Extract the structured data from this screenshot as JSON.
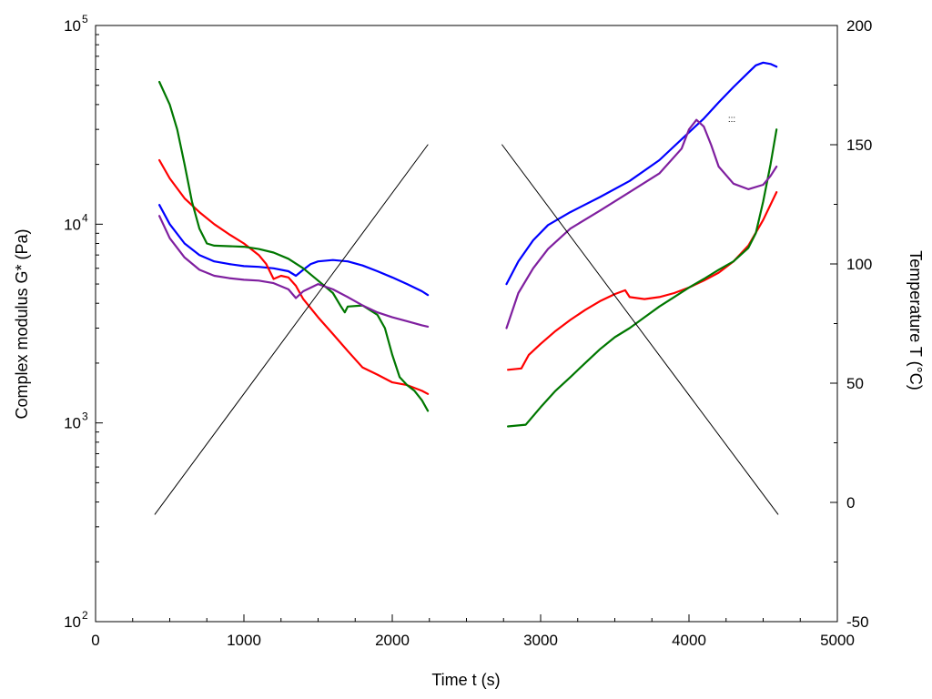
{
  "chart_data": {
    "type": "line",
    "title": "",
    "xlabel": "Time  t  (s)",
    "ylabel_left": "Complex modulus  G*  (Pa)",
    "ylabel_right": "Temperature  T  (°C)",
    "xlim": [
      0,
      5000
    ],
    "ylim_left": [
      100,
      100000
    ],
    "yscale_left": "log",
    "ylim_right": [
      -50,
      200
    ],
    "grid": false,
    "legend": "none",
    "x_ticks": [
      "0",
      "1000",
      "2000",
      "3000",
      "4000",
      "5000"
    ],
    "y_left_ticks": [
      {
        "base": "10",
        "exp": "2",
        "value": 100
      },
      {
        "base": "10",
        "exp": "3",
        "value": 1000
      },
      {
        "base": "10",
        "exp": "4",
        "value": 10000
      },
      {
        "base": "10",
        "exp": "5",
        "value": 100000
      }
    ],
    "y_right_ticks": [
      "-50",
      "0",
      "50",
      "100",
      "150",
      "200"
    ],
    "annotation": ":::",
    "series": [
      {
        "color": "#0000ff",
        "axis": "left",
        "segments": [
          [
            [
              430,
              12500
            ],
            [
              500,
              10000
            ],
            [
              600,
              8000
            ],
            [
              700,
              7000
            ],
            [
              800,
              6500
            ],
            [
              900,
              6300
            ],
            [
              1000,
              6150
            ],
            [
              1100,
              6100
            ],
            [
              1200,
              6000
            ],
            [
              1300,
              5800
            ],
            [
              1350,
              5500
            ],
            [
              1400,
              5900
            ],
            [
              1450,
              6300
            ],
            [
              1500,
              6500
            ],
            [
              1600,
              6600
            ],
            [
              1700,
              6500
            ],
            [
              1800,
              6200
            ],
            [
              1900,
              5800
            ],
            [
              2000,
              5400
            ],
            [
              2100,
              5000
            ],
            [
              2200,
              4600
            ],
            [
              2240,
              4400
            ]
          ],
          [
            [
              2770,
              5000
            ],
            [
              2850,
              6500
            ],
            [
              2950,
              8300
            ],
            [
              3050,
              9900
            ],
            [
              3200,
              11500
            ],
            [
              3400,
              13700
            ],
            [
              3600,
              16500
            ],
            [
              3800,
              21000
            ],
            [
              4000,
              29000
            ],
            [
              4100,
              34000
            ],
            [
              4200,
              41000
            ],
            [
              4300,
              49000
            ],
            [
              4400,
              58000
            ],
            [
              4450,
              63000
            ],
            [
              4500,
              65000
            ],
            [
              4550,
              64000
            ],
            [
              4590,
              62000
            ]
          ]
        ]
      },
      {
        "color": "#ff0000",
        "axis": "left",
        "segments": [
          [
            [
              430,
              21000
            ],
            [
              500,
              17000
            ],
            [
              600,
              13500
            ],
            [
              700,
              11500
            ],
            [
              800,
              10000
            ],
            [
              900,
              8900
            ],
            [
              1000,
              8000
            ],
            [
              1100,
              7000
            ],
            [
              1150,
              6300
            ],
            [
              1200,
              5300
            ],
            [
              1250,
              5500
            ],
            [
              1300,
              5400
            ],
            [
              1350,
              4900
            ],
            [
              1400,
              4200
            ],
            [
              1500,
              3400
            ],
            [
              1600,
              2800
            ],
            [
              1700,
              2300
            ],
            [
              1800,
              1900
            ],
            [
              1900,
              1750
            ],
            [
              2000,
              1600
            ],
            [
              2100,
              1550
            ],
            [
              2200,
              1450
            ],
            [
              2240,
              1400
            ]
          ],
          [
            [
              2780,
              1850
            ],
            [
              2870,
              1880
            ],
            [
              2920,
              2200
            ],
            [
              3000,
              2500
            ],
            [
              3100,
              2900
            ],
            [
              3200,
              3300
            ],
            [
              3300,
              3700
            ],
            [
              3400,
              4100
            ],
            [
              3500,
              4450
            ],
            [
              3570,
              4650
            ],
            [
              3600,
              4300
            ],
            [
              3700,
              4200
            ],
            [
              3800,
              4300
            ],
            [
              3900,
              4500
            ],
            [
              4000,
              4800
            ],
            [
              4100,
              5200
            ],
            [
              4200,
              5700
            ],
            [
              4300,
              6500
            ],
            [
              4400,
              7800
            ],
            [
              4500,
              10500
            ],
            [
              4590,
              14500
            ]
          ]
        ]
      },
      {
        "color": "#007700",
        "axis": "left",
        "segments": [
          [
            [
              430,
              52000
            ],
            [
              500,
              40000
            ],
            [
              550,
              30000
            ],
            [
              600,
              20000
            ],
            [
              650,
              13000
            ],
            [
              700,
              9500
            ],
            [
              750,
              8000
            ],
            [
              800,
              7800
            ],
            [
              900,
              7750
            ],
            [
              1000,
              7700
            ],
            [
              1100,
              7500
            ],
            [
              1200,
              7200
            ],
            [
              1300,
              6700
            ],
            [
              1400,
              6000
            ],
            [
              1500,
              5200
            ],
            [
              1600,
              4500
            ],
            [
              1650,
              3900
            ],
            [
              1680,
              3600
            ],
            [
              1700,
              3850
            ],
            [
              1800,
              3900
            ],
            [
              1900,
              3500
            ],
            [
              1950,
              3000
            ],
            [
              2000,
              2200
            ],
            [
              2050,
              1700
            ],
            [
              2100,
              1550
            ],
            [
              2150,
              1450
            ],
            [
              2200,
              1300
            ],
            [
              2240,
              1150
            ]
          ],
          [
            [
              2780,
              960
            ],
            [
              2900,
              980
            ],
            [
              3000,
              1200
            ],
            [
              3100,
              1450
            ],
            [
              3200,
              1700
            ],
            [
              3300,
              2000
            ],
            [
              3400,
              2350
            ],
            [
              3500,
              2700
            ],
            [
              3600,
              3000
            ],
            [
              3700,
              3400
            ],
            [
              3800,
              3850
            ],
            [
              3900,
              4300
            ],
            [
              4000,
              4800
            ],
            [
              4100,
              5300
            ],
            [
              4200,
              5900
            ],
            [
              4300,
              6500
            ],
            [
              4400,
              7600
            ],
            [
              4450,
              9000
            ],
            [
              4500,
              13000
            ],
            [
              4550,
              20000
            ],
            [
              4590,
              30000
            ]
          ]
        ]
      },
      {
        "color": "#7f1f9f",
        "axis": "left",
        "segments": [
          [
            [
              430,
              11000
            ],
            [
              500,
              8500
            ],
            [
              600,
              6800
            ],
            [
              700,
              5900
            ],
            [
              800,
              5500
            ],
            [
              900,
              5350
            ],
            [
              1000,
              5250
            ],
            [
              1100,
              5200
            ],
            [
              1200,
              5050
            ],
            [
              1300,
              4700
            ],
            [
              1350,
              4250
            ],
            [
              1400,
              4600
            ],
            [
              1500,
              5000
            ],
            [
              1600,
              4700
            ],
            [
              1700,
              4300
            ],
            [
              1800,
              3900
            ],
            [
              1900,
              3600
            ],
            [
              2000,
              3400
            ],
            [
              2100,
              3250
            ],
            [
              2200,
              3100
            ],
            [
              2240,
              3050
            ]
          ],
          [
            [
              2770,
              3000
            ],
            [
              2850,
              4500
            ],
            [
              2950,
              6000
            ],
            [
              3050,
              7500
            ],
            [
              3200,
              9500
            ],
            [
              3400,
              11700
            ],
            [
              3600,
              14500
            ],
            [
              3800,
              18000
            ],
            [
              3950,
              24000
            ],
            [
              4000,
              30000
            ],
            [
              4050,
              33500
            ],
            [
              4100,
              31000
            ],
            [
              4150,
              25000
            ],
            [
              4200,
              19500
            ],
            [
              4300,
              16000
            ],
            [
              4400,
              15000
            ],
            [
              4500,
              15800
            ],
            [
              4550,
              17500
            ],
            [
              4590,
              19500
            ]
          ]
        ]
      },
      {
        "color": "#000000",
        "axis": "right",
        "segments": [
          [
            [
              400,
              -5
            ],
            [
              2240,
              150
            ]
          ],
          [
            [
              2740,
              150
            ],
            [
              4600,
              -5
            ]
          ]
        ]
      }
    ]
  }
}
